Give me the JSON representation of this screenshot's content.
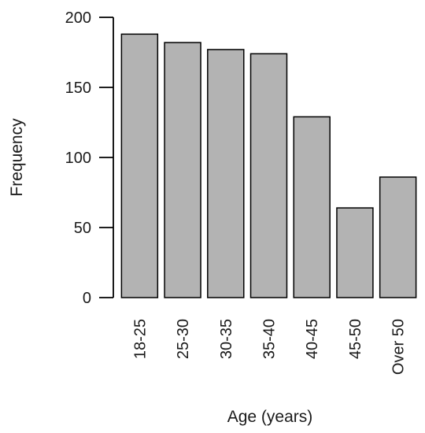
{
  "chart_data": {
    "type": "bar",
    "title": "",
    "xlabel": "Age (years)",
    "ylabel": "Frequency",
    "categories": [
      "18-25",
      "25-30",
      "30-35",
      "35-40",
      "40-45",
      "45-50",
      "Over 50"
    ],
    "values": [
      188,
      182,
      177,
      174,
      129,
      64,
      86
    ],
    "ylim": [
      0,
      200
    ],
    "yticks": [
      0,
      50,
      100,
      150,
      200
    ],
    "grid": false,
    "legend": "none",
    "bar_color": "#b3b3b3",
    "edge_color": "#000000"
  }
}
